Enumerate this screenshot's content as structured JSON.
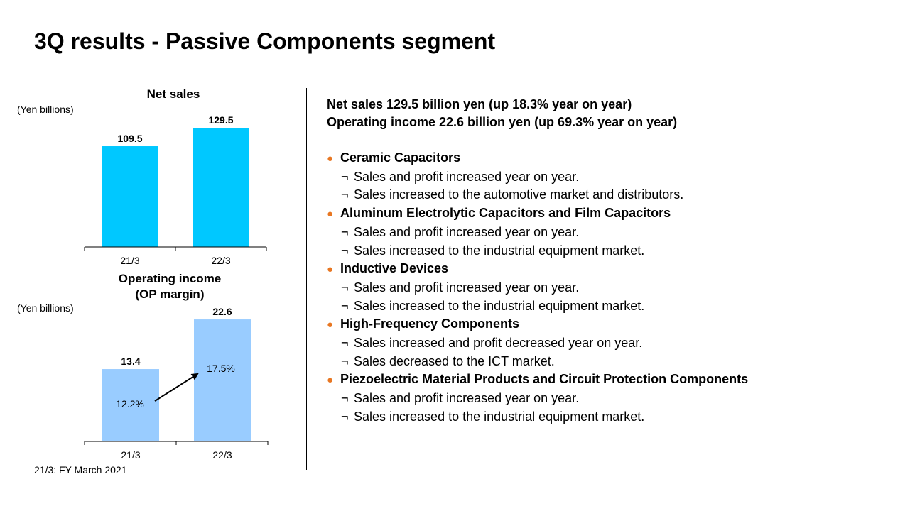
{
  "page": {
    "title": "3Q results - Passive Components segment",
    "footnote": "21/3: FY March 2021"
  },
  "chart_data": [
    {
      "type": "bar",
      "title": "Net sales",
      "unit_label": "(Yen billions)",
      "categories": [
        "21/3",
        "22/3"
      ],
      "values": [
        109.5,
        129.5
      ],
      "data_labels": [
        "109.5",
        "129.5"
      ],
      "ylim": [
        0,
        145
      ],
      "color": "#00C8FF",
      "grid": false
    },
    {
      "type": "bar",
      "title": "Operating income\n(OP margin)",
      "title_lines": [
        "Operating income",
        "(OP margin)"
      ],
      "unit_label": "(Yen billions)",
      "categories": [
        "21/3",
        "22/3"
      ],
      "values": [
        13.4,
        22.6
      ],
      "data_labels": [
        "13.4",
        "22.6"
      ],
      "margins": [
        "12.2%",
        "17.5%"
      ],
      "ylim": [
        0,
        25.5
      ],
      "color": "#99CCFF",
      "grid": false
    }
  ],
  "summary": {
    "net_sales": "Net sales  129.5 billion  yen (up 18.3% year on year)",
    "operating_income": "Operating income  22.6 billion  yen (up 69.3% year on year)"
  },
  "segments": [
    {
      "name": "Ceramic Capacitors",
      "items": [
        "Sales and profit increased year on year.",
        "Sales increased to the automotive market and distributors."
      ]
    },
    {
      "name": "Aluminum  Electrolytic  Capacitors and Film Capacitors",
      "items": [
        "Sales and profit increased year on year.",
        "Sales increased to the industrial equipment  market."
      ]
    },
    {
      "name": "Inductive Devices",
      "items": [
        "Sales and profit increased year on year.",
        "Sales increased to the industrial equipment  market."
      ]
    },
    {
      "name": "High-Frequency  Components",
      "items": [
        "Sales increased and profit decreased year on year.",
        "Sales decreased to the ICT market."
      ]
    },
    {
      "name": "Piezoelectric Material Products and Circuit Protection Components",
      "items": [
        "Sales and profit increased year on year.",
        "Sales increased to the industrial equipment  market."
      ]
    }
  ],
  "bullet_symbol": "●",
  "item_symbol": "¬",
  "colors": {
    "accent_bullet": "#E87722"
  }
}
